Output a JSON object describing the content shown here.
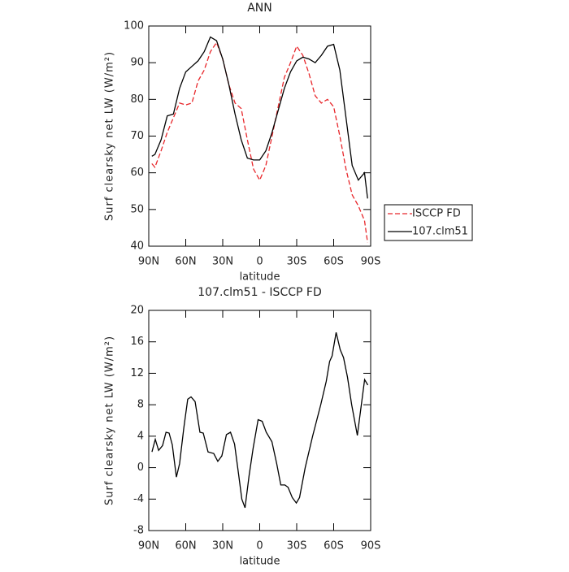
{
  "chart_data": [
    {
      "type": "line",
      "title": "ANN",
      "xlabel": "latitude",
      "ylabel": "Surf clearsky net LW (W/m²)",
      "x": [
        87.5,
        85,
        80,
        75,
        70,
        65,
        60,
        55,
        50,
        45,
        40,
        35,
        30,
        25,
        20,
        15,
        10,
        5,
        0,
        -5,
        -10,
        -15,
        -20,
        -25,
        -30,
        -35,
        -40,
        -45,
        -50,
        -55,
        -60,
        -65,
        -70,
        -75,
        -80,
        -85,
        -87.5
      ],
      "series": [
        {
          "name": "ISCCP FD",
          "color": "#e8262a",
          "style": "dashed",
          "values": [
            62.5,
            61.5,
            66,
            71,
            75,
            79,
            78.5,
            79,
            85,
            88,
            93,
            95.5,
            91,
            84,
            79,
            77.5,
            69,
            61,
            58,
            62,
            70,
            78,
            86,
            90,
            94.5,
            92,
            87,
            81,
            79,
            80,
            78,
            70,
            61,
            54,
            51,
            47,
            41
          ]
        },
        {
          "name": "107.clm51",
          "color": "#000000",
          "style": "solid",
          "values": [
            64.5,
            65,
            69,
            75.5,
            76,
            83,
            87.5,
            89,
            90.5,
            93,
            97,
            96,
            91,
            84,
            76,
            69,
            64,
            63.5,
            63.5,
            66,
            71,
            77,
            83,
            87.5,
            90.5,
            91.5,
            91,
            90,
            92,
            94.5,
            95,
            88,
            75,
            62,
            58,
            60,
            53
          ]
        }
      ],
      "xlim": [
        90,
        -90
      ],
      "xticks": [
        {
          "value": 90,
          "label": "90N"
        },
        {
          "value": 60,
          "label": "60N"
        },
        {
          "value": 30,
          "label": "30N"
        },
        0,
        {
          "value": -30,
          "label": "30S"
        },
        {
          "value": -60,
          "label": "60S"
        },
        {
          "value": -90,
          "label": "90S"
        }
      ],
      "ylim": [
        40,
        100
      ],
      "yticks": [
        40,
        50,
        60,
        70,
        80,
        90,
        100
      ],
      "legend": "right"
    },
    {
      "type": "line",
      "title": "107.clm51 - ISCCP FD",
      "xlabel": "latitude",
      "ylabel": "Surf clearsky net LW (W/m²)",
      "x": [
        87.4,
        84.7,
        82,
        78.8,
        76,
        73.5,
        70.9,
        67.6,
        65,
        61.6,
        58.4,
        55.7,
        52.4,
        48.5,
        45.8,
        41.9,
        37.3,
        34,
        30.7,
        27,
        23.7,
        20.4,
        17,
        14.5,
        11.9,
        8.6,
        5.3,
        1.3,
        -2,
        -5.3,
        -9.9,
        -13.8,
        -17.1,
        -20.4,
        -23,
        -26.4,
        -29.7,
        -32.3,
        -36.9,
        -42.9,
        -49.5,
        -54,
        -56.7,
        -58.7,
        -62,
        -65.3,
        -68,
        -71.2,
        -74.6,
        -79.2,
        -85.1,
        -87.7
      ],
      "series": [
        {
          "name": "107.clm51 - ISCCP FD",
          "color": "#000000",
          "style": "solid",
          "values": [
            2,
            3.6,
            2.2,
            2.8,
            4.5,
            4.4,
            2.9,
            -1.2,
            0.5,
            5,
            8.7,
            9,
            8.4,
            4.5,
            4.4,
            2,
            1.8,
            0.8,
            1.5,
            4.2,
            4.5,
            3,
            -1,
            -4,
            -5.1,
            -1,
            2.5,
            6.1,
            5.9,
            4.5,
            3.3,
            0.5,
            -2.2,
            -2.2,
            -2.5,
            -3.8,
            -4.5,
            -3.8,
            0,
            4,
            8,
            11,
            13.5,
            14.2,
            17.2,
            15,
            14,
            11.5,
            8,
            4.1,
            11.2,
            10.5
          ]
        }
      ],
      "xlim": [
        90,
        -90
      ],
      "xticks": [
        {
          "value": 90,
          "label": "90N"
        },
        {
          "value": 60,
          "label": "60N"
        },
        {
          "value": 30,
          "label": "30N"
        },
        0,
        {
          "value": -30,
          "label": "30S"
        },
        {
          "value": -60,
          "label": "60S"
        },
        {
          "value": -90,
          "label": "90S"
        }
      ],
      "ylim": [
        -8,
        20
      ],
      "yticks": [
        -8,
        -4,
        0,
        4,
        8,
        12,
        16,
        20
      ]
    }
  ]
}
